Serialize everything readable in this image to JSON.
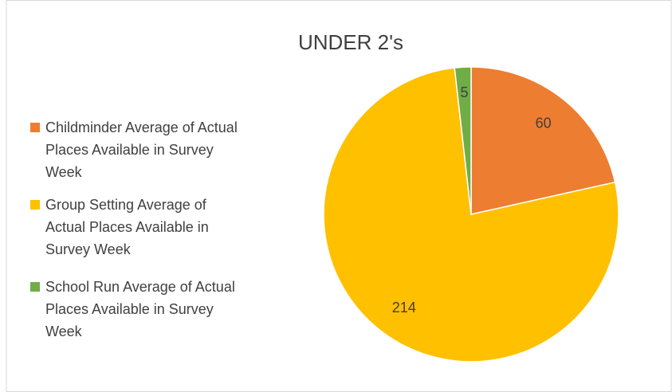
{
  "chart_data": {
    "type": "pie",
    "title": "UNDER 2's",
    "categories": [
      "Childminder Average of Actual Places Available in Survey Week",
      "Group Setting Average of Actual Places Available in Survey Week",
      "School Run Average of Actual Places Available in Survey Week"
    ],
    "values": [
      60,
      214,
      5
    ],
    "colors": [
      "#ed7d31",
      "#ffc000",
      "#70ad47"
    ],
    "legend": "left"
  }
}
